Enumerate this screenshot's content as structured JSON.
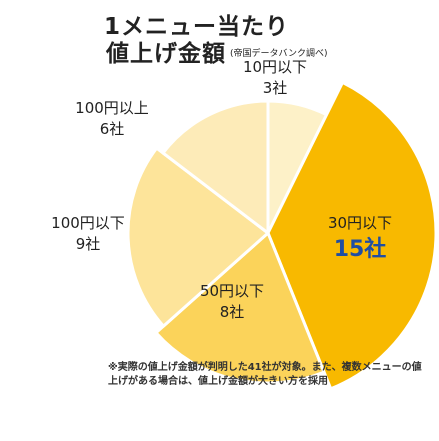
{
  "title": {
    "line1": "1メニュー当たり",
    "line2": "値上げ金額",
    "subtitle": "(帝国データバンク調べ)"
  },
  "chart_data": {
    "type": "pie",
    "title": "1メニュー当たり 値上げ金額",
    "unit": "社",
    "slices": [
      {
        "label": "10円以下",
        "value": 3,
        "value_text": "3社",
        "color": "#fdf1c8",
        "highlight": false
      },
      {
        "label": "30円以下",
        "value": 15,
        "value_text": "15社",
        "color": "#f8b900",
        "highlight": true,
        "highlight_color": "#1f4ea3"
      },
      {
        "label": "50円以下",
        "value": 8,
        "value_text": "8社",
        "color": "#fbd35a",
        "highlight": false
      },
      {
        "label": "100円以下",
        "value": 9,
        "value_text": "9社",
        "color": "#fde49a",
        "highlight": false
      },
      {
        "label": "100円以上",
        "value": 6,
        "value_text": "6社",
        "color": "#fdebb8",
        "highlight": false
      }
    ]
  },
  "footnote": "※実際の値上げ金額が判明した41社が対象。また、複数メニューの値上げがある場合は、値上げ金額が大きい方を採用"
}
